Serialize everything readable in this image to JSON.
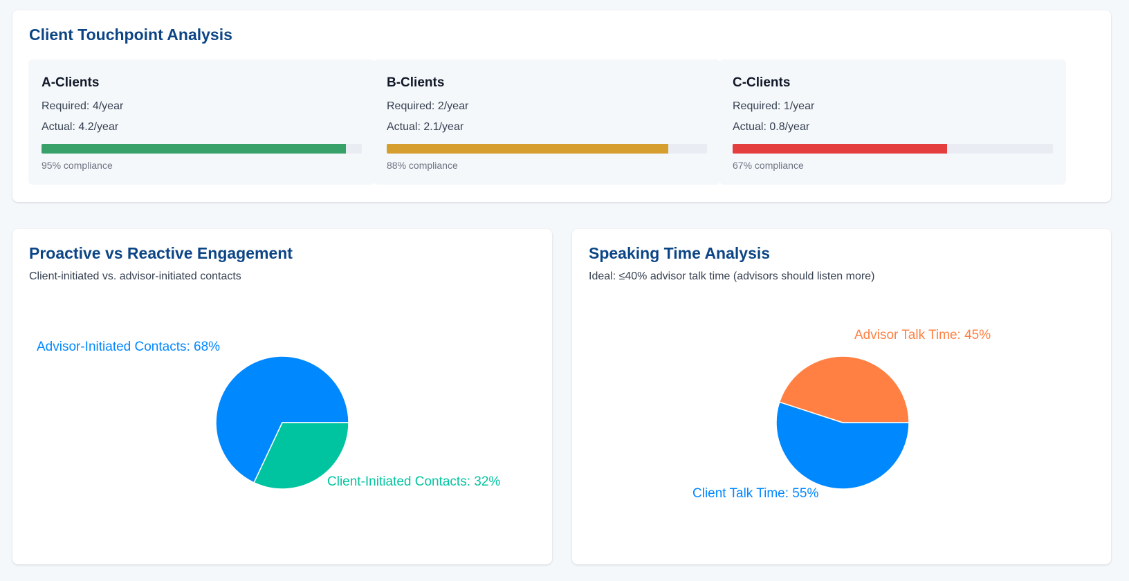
{
  "touchpoint": {
    "title": "Client Touchpoint Analysis",
    "segments": [
      {
        "name": "A-Clients",
        "required": "Required: 4/year",
        "actual": "Actual: 4.2/year",
        "compliance_value": 0.95,
        "compliance_label": "95% compliance",
        "color": "#38a169"
      },
      {
        "name": "B-Clients",
        "required": "Required: 2/year",
        "actual": "Actual: 2.1/year",
        "compliance_value": 0.88,
        "compliance_label": "88% compliance",
        "color": "#d69e2e"
      },
      {
        "name": "C-Clients",
        "required": "Required: 1/year",
        "actual": "Actual: 0.8/year",
        "compliance_value": 0.67,
        "compliance_label": "67% compliance",
        "color": "#e53e3e"
      }
    ]
  },
  "proactive": {
    "title": "Proactive vs Reactive Engagement",
    "subtitle": "Client-initiated vs. advisor-initiated contacts"
  },
  "speaking": {
    "title": "Speaking Time Analysis",
    "subtitle": "Ideal: ≤40% advisor talk time (advisors should listen more)"
  },
  "chart_data": [
    {
      "type": "pie",
      "title": "Proactive vs Reactive Engagement",
      "slices": [
        {
          "label": "Advisor-Initiated Contacts: 68%",
          "name": "Advisor-Initiated Contacts",
          "value": 68,
          "color": "#0088ff"
        },
        {
          "label": "Client-Initiated Contacts: 32%",
          "name": "Client-Initiated Contacts",
          "value": 32,
          "color": "#00c49f"
        }
      ]
    },
    {
      "type": "pie",
      "title": "Speaking Time Analysis",
      "slices": [
        {
          "label": "Advisor Talk Time: 45%",
          "name": "Advisor Talk Time",
          "value": 45,
          "color": "#ff8042"
        },
        {
          "label": "Client Talk Time: 55%",
          "name": "Client Talk Time",
          "value": 55,
          "color": "#0088ff"
        }
      ]
    }
  ]
}
